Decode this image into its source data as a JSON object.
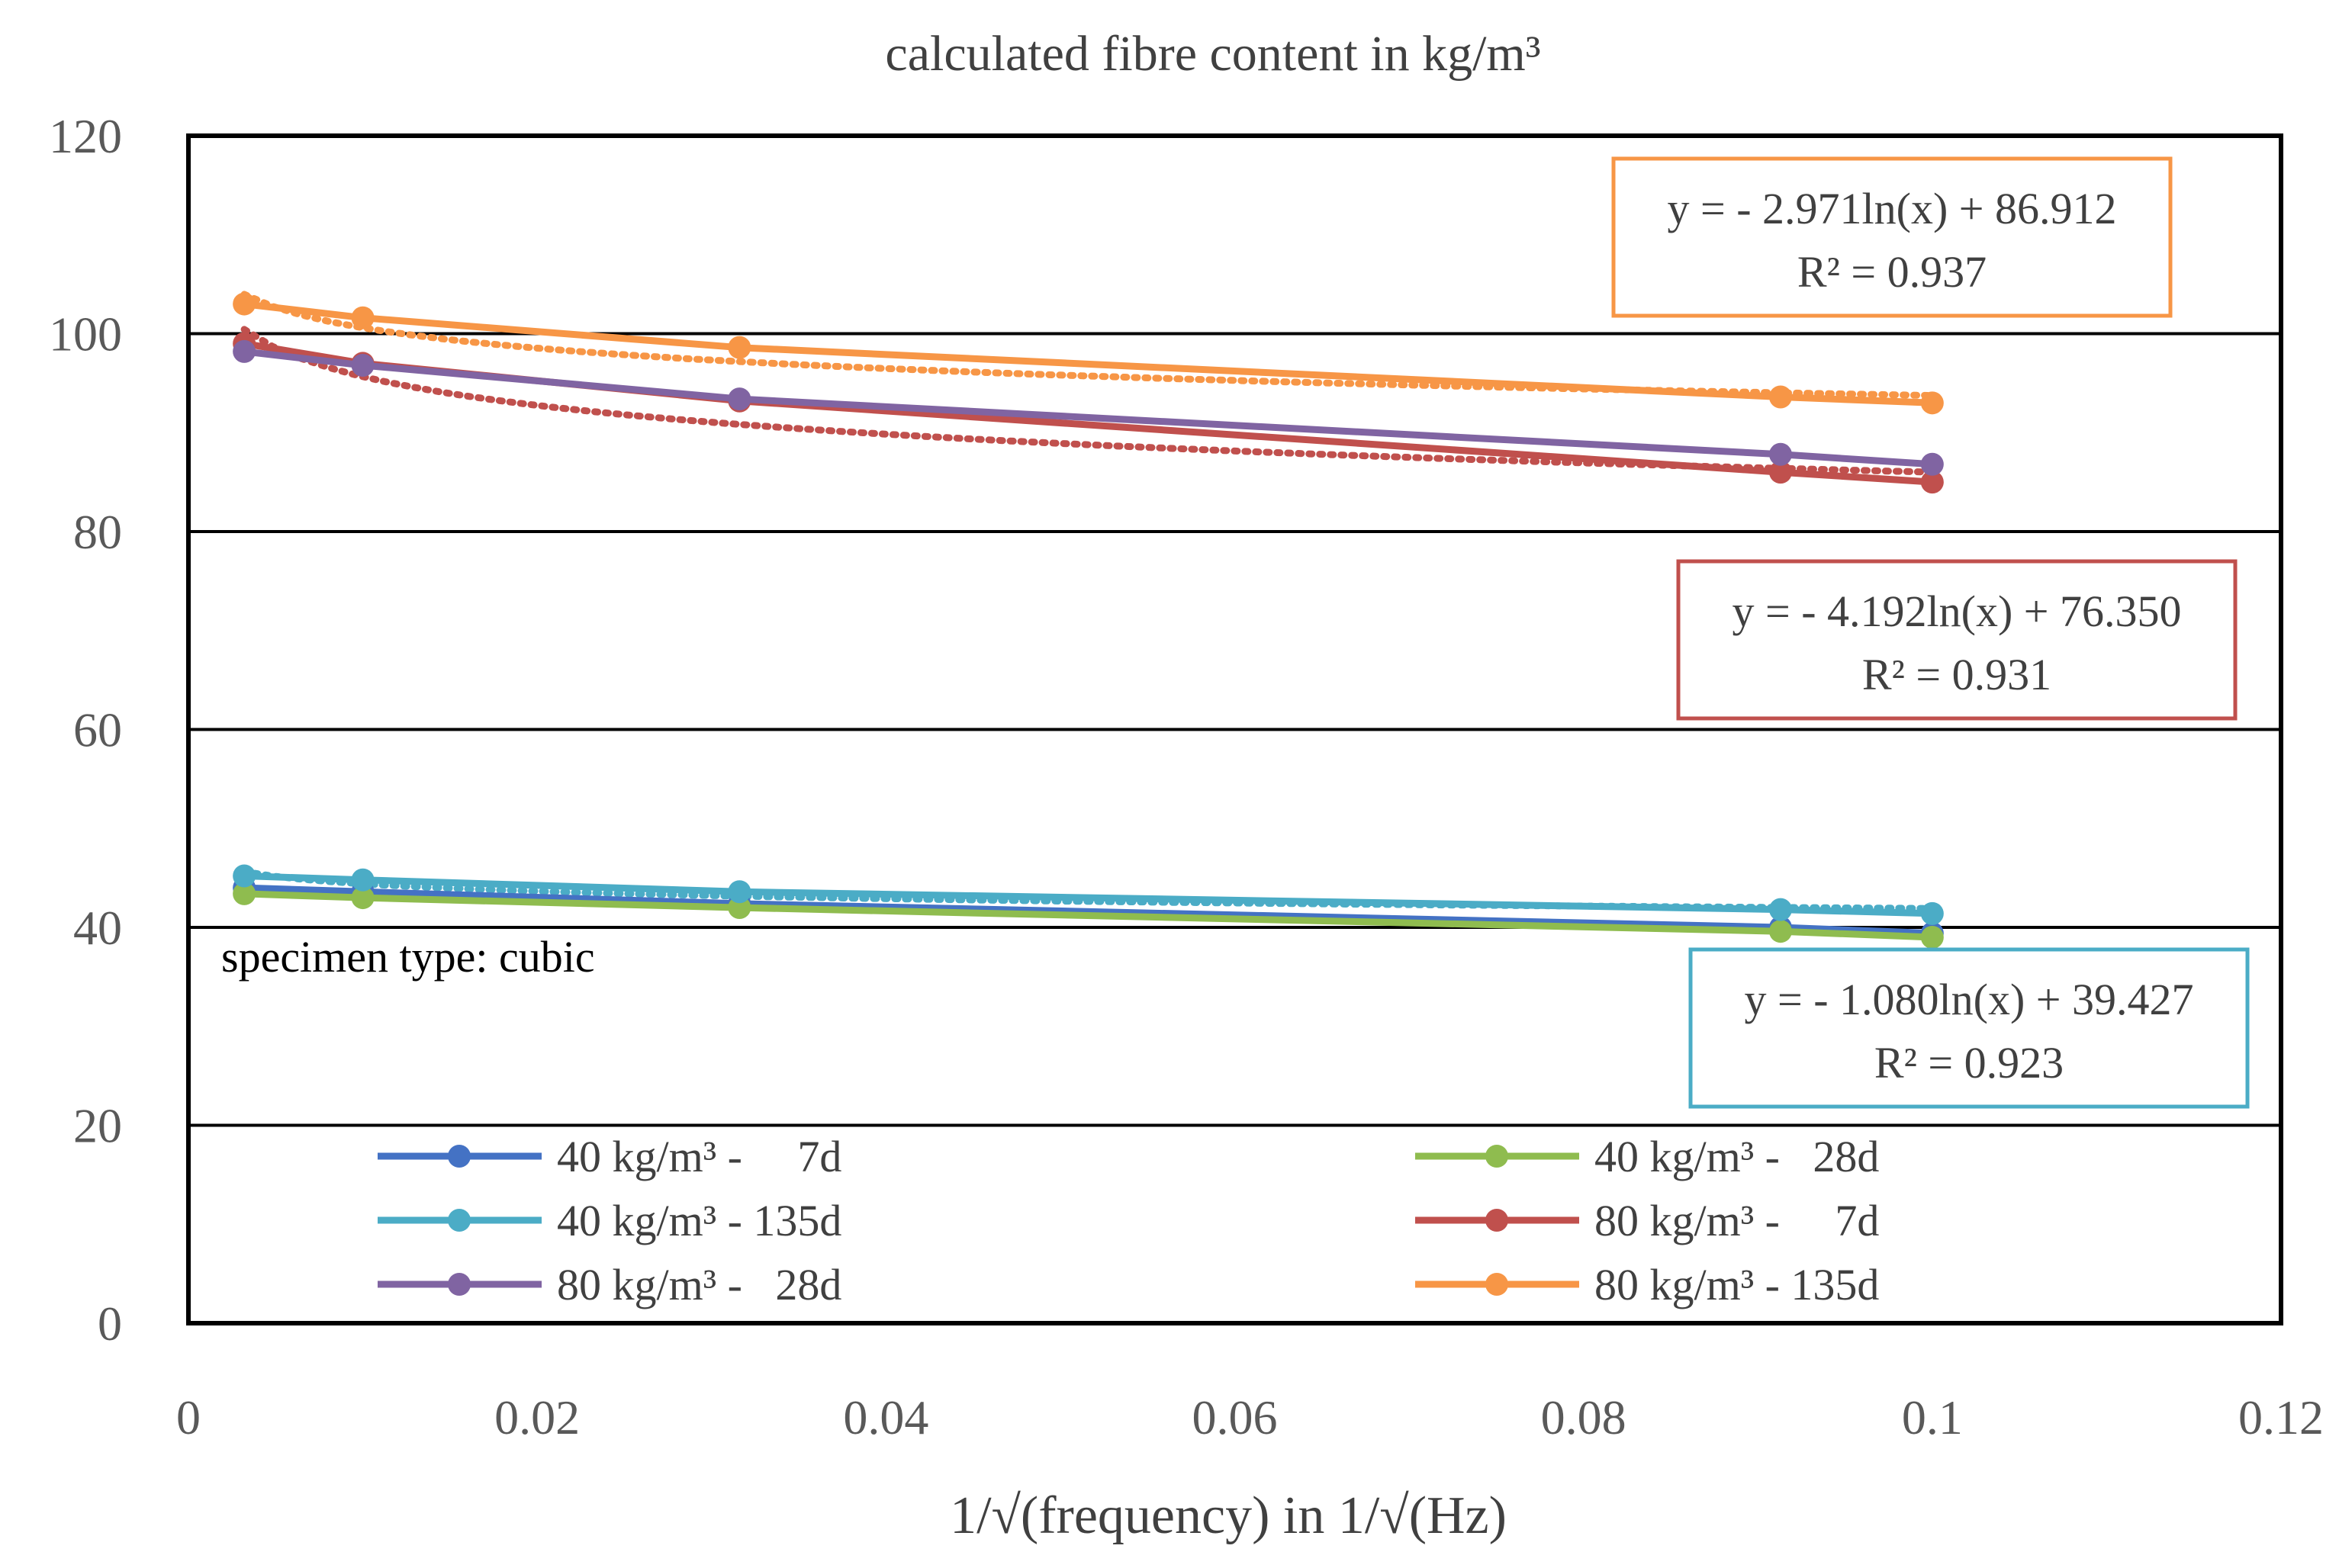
{
  "chart_data": {
    "type": "line",
    "title": "calculated fibre content in kg/m³",
    "xlabel": "1/√(frequency) in 1/√(Hz)",
    "ylabel": "",
    "xlim": [
      0,
      0.12
    ],
    "ylim": [
      0,
      120
    ],
    "x_ticks": [
      "0",
      "0.02",
      "0.04",
      "0.06",
      "0.08",
      "0.1",
      "0.12"
    ],
    "y_ticks": [
      "0",
      "20",
      "40",
      "60",
      "80",
      "100",
      "120"
    ],
    "grid": "horizontal",
    "legend_position": "bottom inside plot",
    "annotation": "specimen type: cubic",
    "x": [
      0.0032,
      0.01,
      0.0316,
      0.0913,
      0.1
    ],
    "series": [
      {
        "name": "40 kg/m³ -     7d",
        "color": "#4472c4",
        "values": [
          44.0,
          43.6,
          42.4,
          40.0,
          39.4
        ]
      },
      {
        "name": "40 kg/m³ -   28d",
        "color": "#8fbc4f",
        "values": [
          43.4,
          43.0,
          42.0,
          39.6,
          39.0
        ]
      },
      {
        "name": "40 kg/m³ - 135d",
        "color": "#4bacc6",
        "values": [
          45.2,
          44.8,
          43.6,
          41.8,
          41.4
        ]
      },
      {
        "name": "80 kg/m³ -     7d",
        "color": "#c0504d",
        "values": [
          99.0,
          97.0,
          93.2,
          86.0,
          85.0
        ]
      },
      {
        "name": "80 kg/m³ -   28d",
        "color": "#8064a2",
        "values": [
          98.2,
          96.8,
          93.4,
          87.8,
          86.8
        ]
      },
      {
        "name": "80 kg/m³ - 135d",
        "color": "#f79646",
        "values": [
          103.0,
          101.6,
          98.6,
          93.6,
          93.0
        ]
      }
    ],
    "trendlines": [
      {
        "color": "#4bacc6",
        "a": -1.08,
        "b": 39.427
      },
      {
        "color": "#c0504d",
        "a": -4.192,
        "b": 76.35
      },
      {
        "color": "#f79646",
        "a": -2.971,
        "b": 86.912
      }
    ],
    "equations": [
      {
        "color": "#f79646",
        "line1": "y = - 2.971ln(x) + 86.912",
        "line2": "R² = 0.937"
      },
      {
        "color": "#c0504d",
        "line1": "y = - 4.192ln(x) + 76.350",
        "line2": "R² = 0.931"
      },
      {
        "color": "#4bacc6",
        "line1": "y = - 1.080ln(x) + 39.427",
        "line2": "R² = 0.923"
      }
    ]
  }
}
